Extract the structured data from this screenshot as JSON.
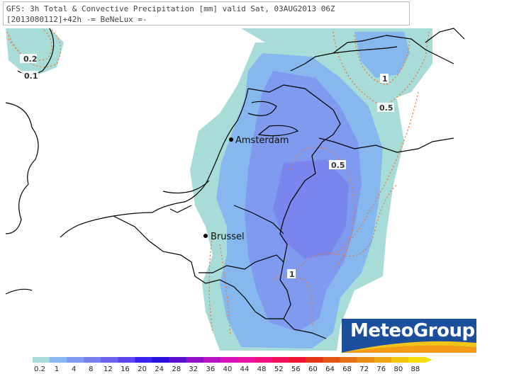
{
  "header": {
    "line1": "GFS: 3h Total & Convective Precipitation [mm] valid Sat, 03AUG2013 06Z",
    "line2": "[2013080112]+42h  -= BeNeLux =-"
  },
  "cities": [
    {
      "name": "Amsterdam"
    },
    {
      "name": "Brussel"
    }
  ],
  "contour_labels": [
    "0.2",
    "0.1",
    "1",
    "0.5",
    "0.5",
    "1"
  ],
  "logo": {
    "text": "MeteoGroup"
  },
  "legend": {
    "ticks": [
      "0.2",
      "1",
      "4",
      "8",
      "12",
      "16",
      "20",
      "24",
      "28",
      "32",
      "36",
      "40",
      "44",
      "48",
      "52",
      "56",
      "60",
      "64",
      "68",
      "72",
      "76",
      "80",
      "88"
    ],
    "colors": [
      "#a8dcd9",
      "#86b8ef",
      "#7f9aee",
      "#7a7fee",
      "#6c62ee",
      "#5b45ee",
      "#3b22ee",
      "#2a10dd",
      "#5a10cc",
      "#8f10c8",
      "#b612c0",
      "#d813b8",
      "#ea13a0",
      "#f0137f",
      "#f0135c",
      "#ee1430",
      "#e6361a",
      "#e35618",
      "#e47216",
      "#e88e14",
      "#eda712",
      "#f2c50f",
      "#f5de0c"
    ]
  },
  "colors": {
    "precip_light": "#a8dcd9",
    "precip_mid": "#86b8ef",
    "precip_heavy": "#7f9aee",
    "contour": "#e87a3a",
    "coast": "#000000",
    "logo_bg": "#1b4f9c"
  }
}
